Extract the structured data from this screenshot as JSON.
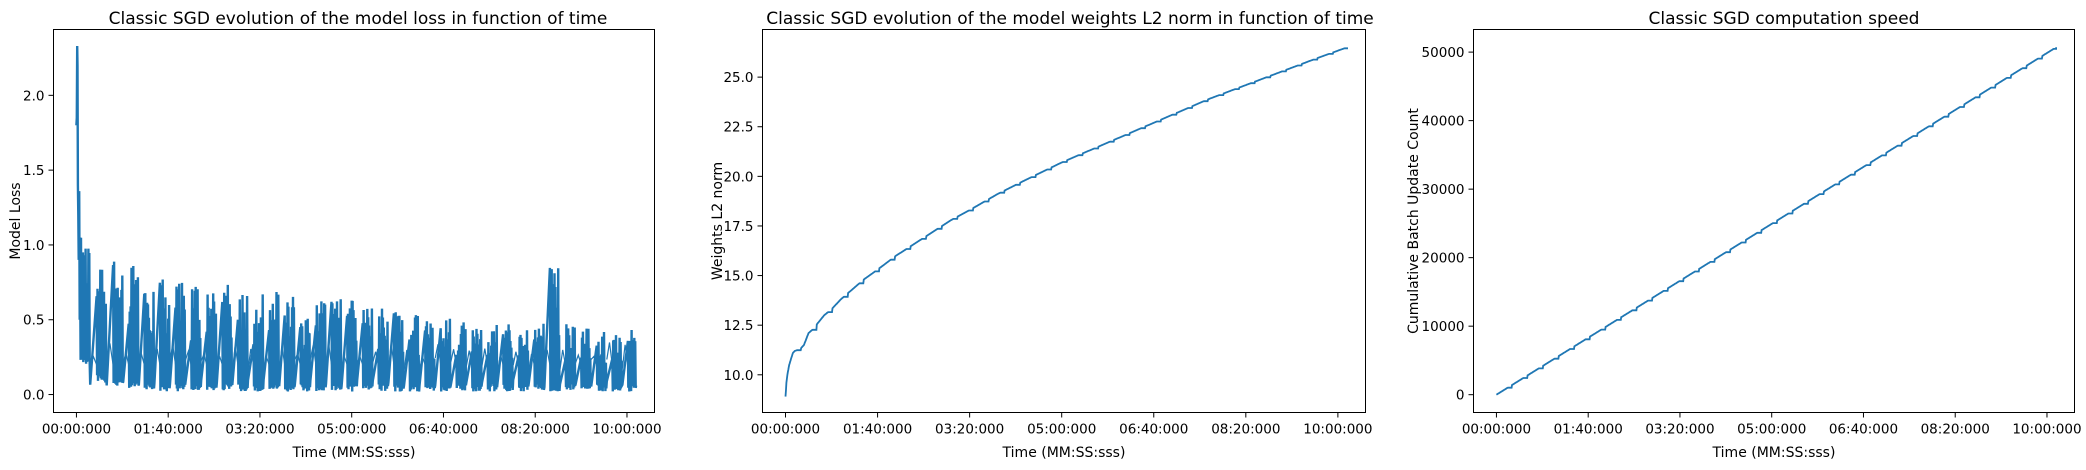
{
  "chart_data": [
    {
      "type": "line",
      "title": "Classic SGD evolution of the model loss in function of time",
      "xlabel": "Time (MM:SS:sss)",
      "ylabel": "Model Loss",
      "xlim": [
        -25,
        630
      ],
      "ylim": [
        -0.12,
        2.44
      ],
      "x_ticks": [
        {
          "v": 0,
          "label": "00:00:000"
        },
        {
          "v": 100,
          "label": "01:40:000"
        },
        {
          "v": 200,
          "label": "03:20:000"
        },
        {
          "v": 300,
          "label": "05:00:000"
        },
        {
          "v": 400,
          "label": "06:40:000"
        },
        {
          "v": 500,
          "label": "08:20:000"
        },
        {
          "v": 600,
          "label": "10:00:000"
        }
      ],
      "y_ticks": [
        {
          "v": 0.0,
          "label": "0.0"
        },
        {
          "v": 0.5,
          "label": "0.5"
        },
        {
          "v": 1.0,
          "label": "1.0"
        },
        {
          "v": 1.5,
          "label": "1.5"
        },
        {
          "v": 2.0,
          "label": "2.0"
        }
      ],
      "series": [
        {
          "name": "loss",
          "color": "#1f77b4",
          "start_points": [
            [
              0,
              1.8
            ],
            [
              0.4,
              1.85
            ],
            [
              0.8,
              2.33
            ],
            [
              1.2,
              2.2
            ],
            [
              1.6,
              1.4
            ],
            [
              2,
              1.2
            ],
            [
              2.5,
              0.9
            ],
            [
              3,
              1.36
            ],
            [
              3.5,
              0.5
            ],
            [
              4,
              1.05
            ],
            [
              4.5,
              0.3
            ],
            [
              5,
              0.95
            ]
          ],
          "bursts": [
            {
              "start": 4,
              "end": 15,
              "peak": 1.05,
              "low": 0.2
            },
            {
              "start": 22,
              "end": 33,
              "peak": 1.0,
              "low": 0.08
            },
            {
              "start": 40,
              "end": 51,
              "peak": 0.97,
              "low": 0.05
            },
            {
              "start": 57,
              "end": 68,
              "peak": 0.95,
              "low": 0.04
            },
            {
              "start": 74,
              "end": 85,
              "peak": 0.82,
              "low": 0.03
            },
            {
              "start": 91,
              "end": 102,
              "peak": 0.78,
              "low": 0.02
            },
            {
              "start": 108,
              "end": 119,
              "peak": 0.75,
              "low": 0.02
            },
            {
              "start": 125,
              "end": 136,
              "peak": 0.78,
              "low": 0.02
            },
            {
              "start": 142,
              "end": 153,
              "peak": 0.76,
              "low": 0.02
            },
            {
              "start": 159,
              "end": 170,
              "peak": 0.74,
              "low": 0.02
            },
            {
              "start": 176,
              "end": 187,
              "peak": 0.72,
              "low": 0.02
            },
            {
              "start": 193,
              "end": 204,
              "peak": 0.7,
              "low": 0.02
            },
            {
              "start": 210,
              "end": 221,
              "peak": 0.7,
              "low": 0.02
            },
            {
              "start": 227,
              "end": 238,
              "peak": 0.68,
              "low": 0.02
            },
            {
              "start": 244,
              "end": 255,
              "peak": 0.65,
              "low": 0.02
            },
            {
              "start": 261,
              "end": 272,
              "peak": 0.68,
              "low": 0.02
            },
            {
              "start": 278,
              "end": 289,
              "peak": 0.66,
              "low": 0.02
            },
            {
              "start": 295,
              "end": 306,
              "peak": 0.64,
              "low": 0.02
            },
            {
              "start": 312,
              "end": 323,
              "peak": 0.6,
              "low": 0.02
            },
            {
              "start": 329,
              "end": 340,
              "peak": 0.6,
              "low": 0.02
            },
            {
              "start": 346,
              "end": 357,
              "peak": 0.56,
              "low": 0.02
            },
            {
              "start": 363,
              "end": 374,
              "peak": 0.55,
              "low": 0.02
            },
            {
              "start": 380,
              "end": 391,
              "peak": 0.52,
              "low": 0.02
            },
            {
              "start": 397,
              "end": 408,
              "peak": 0.52,
              "low": 0.02
            },
            {
              "start": 414,
              "end": 425,
              "peak": 0.5,
              "low": 0.02
            },
            {
              "start": 431,
              "end": 442,
              "peak": 0.5,
              "low": 0.02
            },
            {
              "start": 448,
              "end": 459,
              "peak": 0.48,
              "low": 0.02
            },
            {
              "start": 465,
              "end": 476,
              "peak": 0.48,
              "low": 0.02
            },
            {
              "start": 482,
              "end": 493,
              "peak": 0.47,
              "low": 0.02
            },
            {
              "start": 499,
              "end": 510,
              "peak": 0.5,
              "low": 0.02
            },
            {
              "start": 516,
              "end": 527,
              "peak": 0.88,
              "low": 0.02
            },
            {
              "start": 533,
              "end": 544,
              "peak": 0.48,
              "low": 0.02
            },
            {
              "start": 550,
              "end": 561,
              "peak": 0.45,
              "low": 0.02
            },
            {
              "start": 567,
              "end": 578,
              "peak": 0.43,
              "low": 0.02
            },
            {
              "start": 584,
              "end": 595,
              "peak": 0.46,
              "low": 0.02
            },
            {
              "start": 601,
              "end": 610,
              "peak": 0.45,
              "low": 0.02
            }
          ]
        }
      ]
    },
    {
      "type": "line",
      "title": "Classic SGD evolution of the model weights L2 norm in function of time",
      "xlabel": "Time (MM:SS:sss)",
      "ylabel": "Weights L2 norm",
      "xlim": [
        -25,
        630
      ],
      "ylim": [
        8.1,
        27.4
      ],
      "x_ticks": [
        {
          "v": 0,
          "label": "00:00:000"
        },
        {
          "v": 100,
          "label": "01:40:000"
        },
        {
          "v": 200,
          "label": "03:20:000"
        },
        {
          "v": 300,
          "label": "05:00:000"
        },
        {
          "v": 400,
          "label": "06:40:000"
        },
        {
          "v": 500,
          "label": "08:20:000"
        },
        {
          "v": 600,
          "label": "10:00:000"
        }
      ],
      "y_ticks": [
        {
          "v": 10.0,
          "label": "10.0"
        },
        {
          "v": 12.5,
          "label": "12.5"
        },
        {
          "v": 15.0,
          "label": "15.0"
        },
        {
          "v": 17.5,
          "label": "17.5"
        },
        {
          "v": 20.0,
          "label": "20.0"
        },
        {
          "v": 22.5,
          "label": "22.5"
        },
        {
          "v": 25.0,
          "label": "25.0"
        }
      ],
      "series": [
        {
          "name": "weights_l2",
          "color": "#1f77b4",
          "x": [
            0,
            1,
            2,
            4,
            6,
            8,
            10,
            13,
            16,
            20,
            25,
            30,
            35,
            42,
            50,
            60,
            70,
            85,
            100,
            120,
            140,
            160,
            180,
            200,
            230,
            260,
            300,
            340,
            380,
            420,
            460,
            500,
            540,
            580,
            610
          ],
          "y": [
            8.9,
            9.6,
            10.0,
            10.5,
            10.8,
            11.1,
            11.2,
            11.25,
            11.3,
            11.5,
            12.1,
            12.3,
            12.6,
            13.0,
            13.3,
            13.8,
            14.2,
            14.8,
            15.3,
            16.0,
            16.6,
            17.2,
            17.8,
            18.3,
            19.1,
            19.8,
            20.7,
            21.5,
            22.3,
            23.1,
            23.9,
            24.6,
            25.3,
            26.0,
            26.5
          ],
          "step_period": 17
        }
      ]
    },
    {
      "type": "line",
      "title": "Classic SGD computation speed",
      "xlabel": "Time (MM:SS:sss)",
      "ylabel": "Cumulative Batch Update Count",
      "xlim": [
        -25,
        630
      ],
      "ylim": [
        -2600,
        53300
      ],
      "x_ticks": [
        {
          "v": 0,
          "label": "00:00:000"
        },
        {
          "v": 100,
          "label": "01:40:000"
        },
        {
          "v": 200,
          "label": "03:20:000"
        },
        {
          "v": 300,
          "label": "05:00:000"
        },
        {
          "v": 400,
          "label": "06:40:000"
        },
        {
          "v": 500,
          "label": "08:20:000"
        },
        {
          "v": 600,
          "label": "10:00:000"
        }
      ],
      "y_ticks": [
        {
          "v": 0,
          "label": "0"
        },
        {
          "v": 10000,
          "label": "10000"
        },
        {
          "v": 20000,
          "label": "20000"
        },
        {
          "v": 30000,
          "label": "30000"
        },
        {
          "v": 40000,
          "label": "40000"
        },
        {
          "v": 50000,
          "label": "50000"
        }
      ],
      "series": [
        {
          "name": "batch_count",
          "color": "#1f77b4",
          "x": [
            0,
            610
          ],
          "y": [
            0,
            50700
          ],
          "step_period": 17
        }
      ]
    }
  ]
}
